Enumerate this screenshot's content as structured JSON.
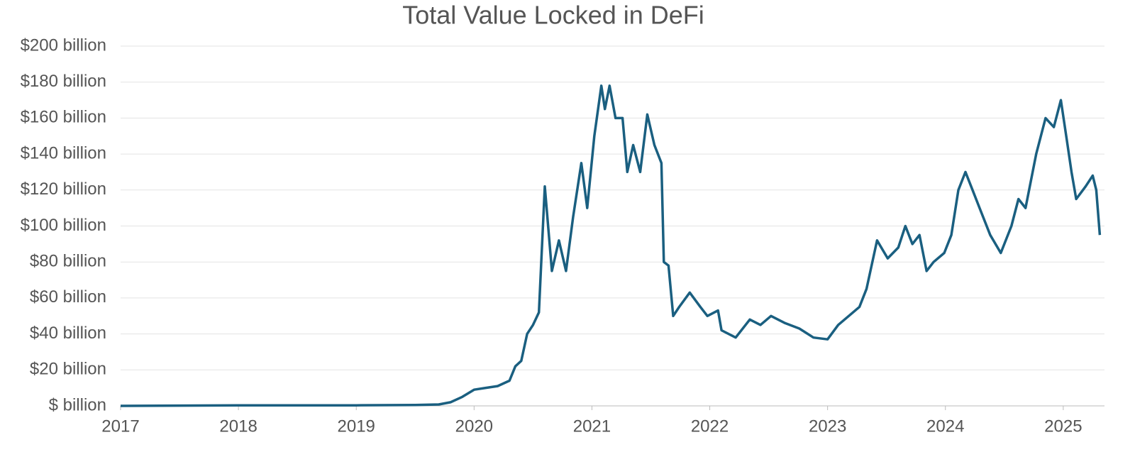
{
  "chart_data": {
    "type": "line",
    "title": "Total Value Locked in DeFi",
    "x": [
      2017.0,
      2018.0,
      2019.0,
      2019.5,
      2019.7,
      2019.8,
      2019.9,
      2020.0,
      2020.1,
      2020.2,
      2020.3,
      2020.35,
      2020.4,
      2020.45,
      2020.5,
      2020.55,
      2020.6,
      2020.66,
      2020.72,
      2020.78,
      2020.84,
      2020.91,
      2020.96,
      2021.02,
      2021.08,
      2021.11,
      2021.15,
      2021.2,
      2021.26,
      2021.3,
      2021.35,
      2021.41,
      2021.47,
      2021.53,
      2021.59,
      2021.61,
      2021.65,
      2021.69,
      2021.74,
      2021.83,
      2021.92,
      2021.98,
      2022.07,
      2022.1,
      2022.22,
      2022.34,
      2022.43,
      2022.52,
      2022.64,
      2022.76,
      2022.88,
      2023.0,
      2023.09,
      2023.18,
      2023.27,
      2023.33,
      2023.42,
      2023.51,
      2023.6,
      2023.66,
      2023.72,
      2023.78,
      2023.84,
      2023.9,
      2023.99,
      2024.05,
      2024.11,
      2024.17,
      2024.23,
      2024.29,
      2024.38,
      2024.47,
      2024.56,
      2024.62,
      2024.68,
      2024.77,
      2024.85,
      2024.92,
      2024.98,
      2025.03,
      2025.07,
      2025.11,
      2025.19,
      2025.25,
      2025.28,
      2025.31
    ],
    "series": [
      {
        "name": "Total Value Locked",
        "color": "#1a5f80",
        "values": [
          0,
          0.3,
          0.3,
          0.5,
          0.8,
          2,
          5,
          9,
          10,
          11,
          14,
          22,
          25,
          40,
          45,
          52,
          122,
          75,
          92,
          75,
          105,
          135,
          110,
          150,
          178,
          165,
          178,
          160,
          160,
          130,
          145,
          130,
          162,
          145,
          135,
          80,
          78,
          50,
          55,
          63,
          55,
          50,
          53,
          42,
          38,
          48,
          45,
          50,
          46,
          43,
          38,
          37,
          45,
          50,
          55,
          65,
          92,
          82,
          88,
          100,
          90,
          95,
          75,
          80,
          85,
          95,
          120,
          130,
          120,
          110,
          95,
          85,
          100,
          115,
          110,
          140,
          160,
          155,
          170,
          148,
          130,
          115,
          122,
          128,
          120,
          95
        ]
      }
    ],
    "xlim": [
      2017,
      2025.35
    ],
    "xticks": [
      2017,
      2018,
      2019,
      2020,
      2021,
      2022,
      2023,
      2024,
      2025
    ],
    "ylim": [
      0,
      200
    ],
    "yticks": [
      {
        "value": 0,
        "label": "$ billion"
      },
      {
        "value": 20,
        "label": "$20 billion"
      },
      {
        "value": 40,
        "label": "$40 billion"
      },
      {
        "value": 60,
        "label": "$60 billion"
      },
      {
        "value": 80,
        "label": "$80 billion"
      },
      {
        "value": 100,
        "label": "$100 billion"
      },
      {
        "value": 120,
        "label": "$120 billion"
      },
      {
        "value": 140,
        "label": "$140 billion"
      },
      {
        "value": 160,
        "label": "$160 billion"
      },
      {
        "value": 180,
        "label": "$180 billion"
      },
      {
        "value": 200,
        "label": "$200 billion"
      }
    ],
    "grid": true
  }
}
